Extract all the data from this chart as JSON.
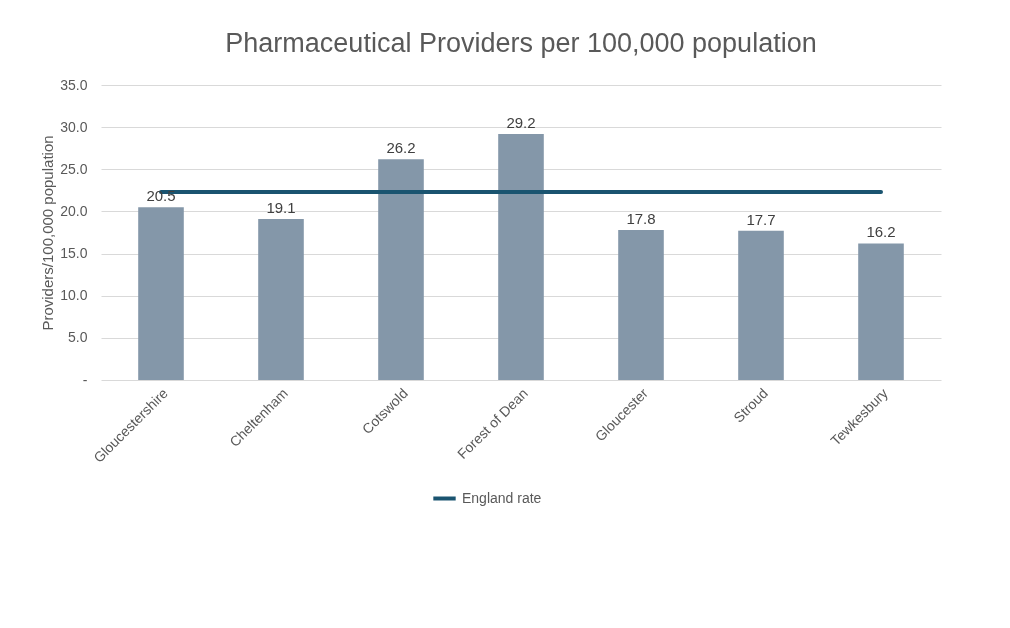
{
  "chart_data": {
    "type": "bar",
    "title": "Pharmaceutical Providers per 100,000 population",
    "ylabel": "Providers/100,000 population",
    "categories": [
      "Gloucestershire",
      "Cheltenham",
      "Cotswold",
      "Forest of Dean",
      "Gloucester",
      "Stroud",
      "Tewkesbury"
    ],
    "series": [
      {
        "color": "#8497a9",
        "values": [
          20.5,
          19.1,
          26.2,
          29.2,
          17.8,
          17.7,
          16.2
        ],
        "value_labels": [
          "20.5",
          "19.1",
          "26.2",
          "29.2",
          "17.8",
          "17.7",
          "16.2"
        ]
      },
      {
        "type": "line",
        "name": "England rate",
        "color": "#1a5470",
        "values": [
          22.3,
          22.3,
          22.3,
          22.3,
          22.3,
          22.3,
          22.3
        ]
      }
    ],
    "ylim": [
      0,
      35
    ],
    "yticks": [
      {
        "value": 0,
        "label": "-"
      },
      {
        "value": 5,
        "label": "5.0"
      },
      {
        "value": 10,
        "label": "10.0"
      },
      {
        "value": 15,
        "label": "15.0"
      },
      {
        "value": 20,
        "label": "20.0"
      },
      {
        "value": 25,
        "label": "25.0"
      },
      {
        "value": 30,
        "label": "30.0"
      },
      {
        "value": 35,
        "label": "35.0"
      }
    ],
    "grid": "y",
    "legend": "bottom"
  }
}
